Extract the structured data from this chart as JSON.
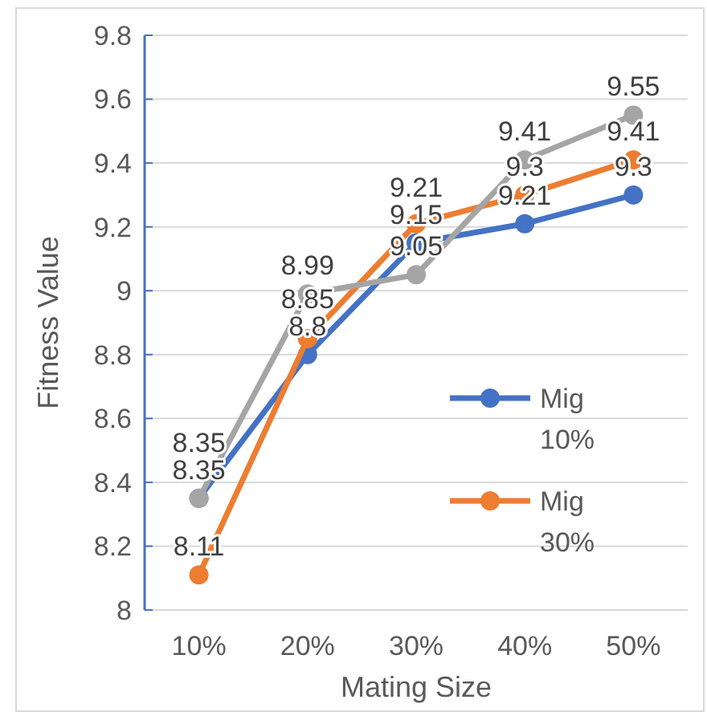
{
  "chart_data": {
    "type": "line",
    "xlabel": "Mating Size",
    "ylabel": "Fitness Value",
    "categories": [
      "10%",
      "20%",
      "30%",
      "40%",
      "50%"
    ],
    "series": [
      {
        "name": "Mig 10%",
        "color": "#4472c4",
        "values": [
          8.35,
          8.8,
          9.15,
          9.21,
          9.3
        ]
      },
      {
        "name": "Mig 30%",
        "color": "#ed7d31",
        "values": [
          8.11,
          8.85,
          9.21,
          9.3,
          9.41
        ]
      },
      {
        "color": "#a5a5a5",
        "values": [
          8.35,
          8.99,
          9.05,
          9.41,
          9.55
        ]
      }
    ],
    "ylim": [
      8,
      9.8
    ],
    "yticks": [
      8,
      8.2,
      8.4,
      8.6,
      8.8,
      9,
      9.2,
      9.4,
      9.6,
      9.8
    ],
    "grid": "y",
    "legend": "right",
    "marker": "circle",
    "line_style": "solid",
    "data_labels": true
  }
}
